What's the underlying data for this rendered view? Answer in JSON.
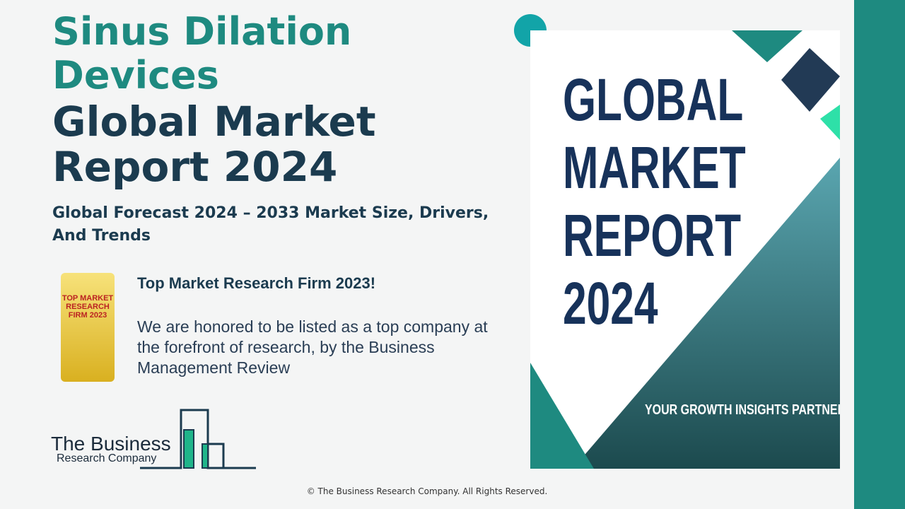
{
  "header": {
    "title_line1": "Sinus Dilation Devices",
    "title_line2": "Global Market Report 2024",
    "subtitle": "Global Forecast 2024 – 2033 Market Size, Drivers, And Trends"
  },
  "award": {
    "badge": "TOP MARKET RESEARCH FIRM 2023",
    "heading": "Top Market Research Firm 2023!",
    "text": "We are honored to be listed as a top company at the forefront of research, by the Business Management Review"
  },
  "logo": {
    "name": "The Business",
    "sub": "Research Company"
  },
  "cover": {
    "title": "GLOBAL MARKET REPORT 2024",
    "tagline": "YOUR GROWTH INSIGHTS PARTNER"
  },
  "footer": {
    "copyright": "© The Business Research Company. All Rights Reserved."
  }
}
